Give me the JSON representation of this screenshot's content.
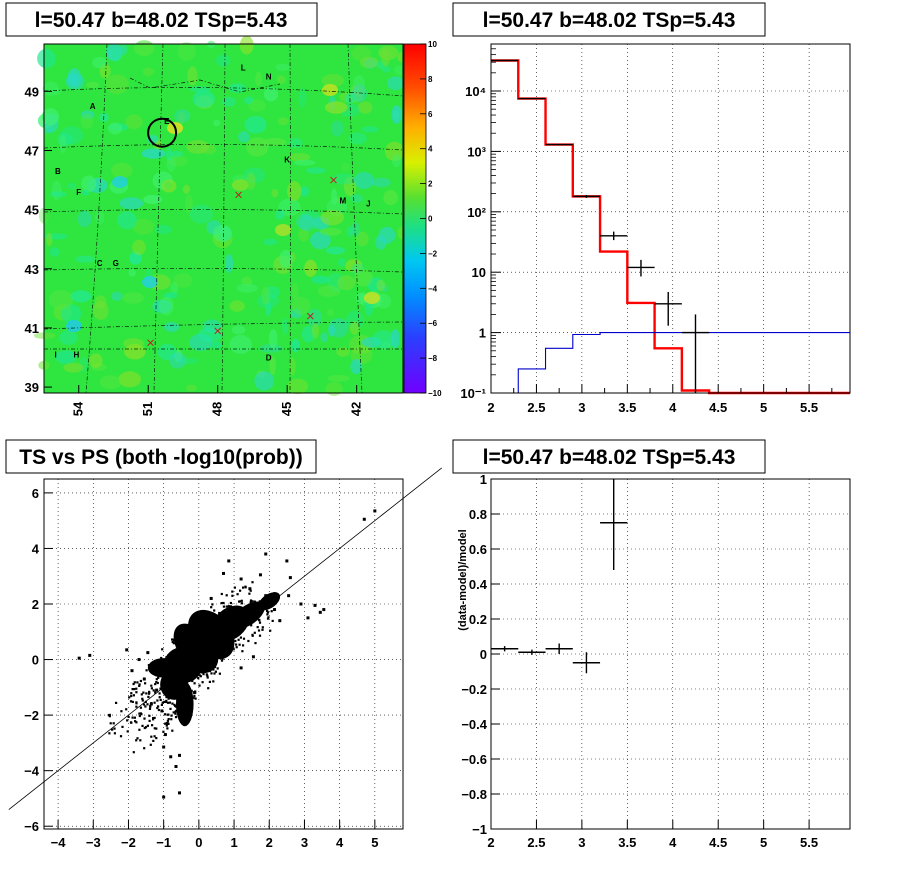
{
  "chart_data": [
    {
      "type": "heatmap",
      "title": "l=50.47 b=48.02 TSp=5.43",
      "x_ticks": [
        "54",
        "51",
        "48",
        "45",
        "42"
      ],
      "y_ticks": [
        "39",
        "41",
        "43",
        "45",
        "47",
        "49"
      ],
      "xlim": [
        55.5,
        40
      ],
      "ylim": [
        38.8,
        50.6
      ],
      "colorbar_ticks": [
        "10",
        "8",
        "6",
        "4",
        "2",
        "0",
        "−2",
        "−4",
        "−6",
        "−8",
        "−10"
      ],
      "colorbar_range": [
        -10,
        10
      ],
      "colors": {
        "background": "#2fe640",
        "high": "#ff2a00",
        "low": "#6a00ff"
      },
      "source_labels": [
        {
          "text": "A",
          "x": 53.4,
          "y": 48.4
        },
        {
          "text": "B",
          "x": 54.9,
          "y": 46.2
        },
        {
          "text": "F",
          "x": 54.0,
          "y": 45.5
        },
        {
          "text": "E",
          "x": 50.2,
          "y": 47.9
        },
        {
          "text": "L",
          "x": 46.9,
          "y": 49.7
        },
        {
          "text": "N",
          "x": 45.8,
          "y": 49.4
        },
        {
          "text": "K",
          "x": 45.0,
          "y": 46.6
        },
        {
          "text": "M",
          "x": 42.6,
          "y": 45.2
        },
        {
          "text": "J",
          "x": 41.5,
          "y": 45.1
        },
        {
          "text": "C",
          "x": 53.1,
          "y": 43.1
        },
        {
          "text": "G",
          "x": 52.4,
          "y": 43.1
        },
        {
          "text": "I",
          "x": 55.0,
          "y": 40.0
        },
        {
          "text": "H",
          "x": 54.1,
          "y": 40.0
        },
        {
          "text": "D",
          "x": 45.8,
          "y": 39.9
        }
      ],
      "crosses": [
        [
          47.1,
          45.5
        ],
        [
          43.0,
          46.0
        ],
        [
          44.0,
          41.4
        ],
        [
          48.0,
          40.9
        ],
        [
          50.9,
          40.5
        ]
      ],
      "circle": {
        "x": 50.4,
        "y": 47.6
      }
    },
    {
      "type": "line",
      "title": "l=50.47 b=48.02 TSp=5.43",
      "x_ticks": [
        "2",
        "2.5",
        "3",
        "3.5",
        "4",
        "4.5",
        "5",
        "5.5"
      ],
      "y_ticks": [
        "10⁻¹",
        "1",
        "10",
        "10²",
        "10³",
        "10⁴"
      ],
      "xlim": [
        2,
        5.95
      ],
      "ylim": [
        0.1,
        60000
      ],
      "log_y": true,
      "grid": true,
      "series": [
        {
          "color": "#ff0000",
          "edges": [
            2,
            2.3,
            2.6,
            2.9,
            3.2,
            3.5,
            3.8,
            4.1,
            4.4,
            5.95
          ],
          "values": [
            32000,
            7500,
            1300,
            180,
            22,
            3.1,
            0.55,
            0.11,
            0.1
          ]
        },
        {
          "color": "#0000cc",
          "edges": [
            2,
            2.3,
            2.6,
            2.9,
            3.2,
            5.95
          ],
          "values": [
            0.1,
            0.25,
            0.55,
            0.93,
            1.0
          ]
        },
        {
          "color": "#000000",
          "points": [
            {
              "x": 2.15,
              "y": 32000,
              "xerr": 0.15,
              "ylo": 31500,
              "yhi": 32500
            },
            {
              "x": 2.45,
              "y": 7500,
              "xerr": 0.15,
              "ylo": 7400,
              "yhi": 7600
            },
            {
              "x": 2.75,
              "y": 1300,
              "xerr": 0.15,
              "ylo": 1270,
              "yhi": 1330
            },
            {
              "x": 3.05,
              "y": 180,
              "xerr": 0.15,
              "ylo": 170,
              "yhi": 190
            },
            {
              "x": 3.35,
              "y": 40,
              "xerr": 0.15,
              "ylo": 34,
              "yhi": 47
            },
            {
              "x": 3.65,
              "y": 12,
              "xerr": 0.15,
              "ylo": 8.5,
              "yhi": 16
            },
            {
              "x": 3.95,
              "y": 3.0,
              "xerr": 0.15,
              "ylo": 1.3,
              "yhi": 4.7
            },
            {
              "x": 4.25,
              "y": 1.0,
              "xerr": 0.15,
              "ylo": 0.1,
              "yhi": 2.0
            }
          ]
        }
      ]
    },
    {
      "type": "scatter",
      "title": "TS vs PS (both -log10(prob))",
      "x_ticks": [
        "−4",
        "−3",
        "−2",
        "−1",
        "0",
        "1",
        "2",
        "3",
        "4",
        "5"
      ],
      "y_ticks": [
        "−6",
        "−4",
        "−2",
        "0",
        "2",
        "4",
        "6"
      ],
      "xlim": [
        -4.4,
        5.8
      ],
      "ylim": [
        -6.1,
        6.5
      ],
      "grid": true,
      "diagonal": {
        "from": [
          -5.4,
          -5.4
        ],
        "to": [
          6.9,
          6.9
        ]
      },
      "points": [
        [
          -3.4,
          0.05
        ],
        [
          -3.1,
          0.15
        ],
        [
          -2.05,
          0.35
        ],
        [
          -1.7,
          0.0
        ],
        [
          -1.45,
          0.25
        ],
        [
          -1.3,
          -0.35
        ],
        [
          -1.9,
          -0.4
        ],
        [
          -1.55,
          -0.7
        ],
        [
          -1.2,
          -1.1
        ],
        [
          -1.35,
          -1.6
        ],
        [
          -1.05,
          -1.85
        ],
        [
          -0.9,
          -2.3
        ],
        [
          -0.95,
          -2.7
        ],
        [
          -1.0,
          -3.15
        ],
        [
          -0.8,
          -3.5
        ],
        [
          -0.65,
          -3.85
        ],
        [
          -0.55,
          -3.45
        ],
        [
          -1.0,
          -4.95
        ],
        [
          -0.55,
          -4.8
        ],
        [
          0.3,
          -0.35
        ],
        [
          0.55,
          0.6
        ],
        [
          0.9,
          1.9
        ],
        [
          1.45,
          2.55
        ],
        [
          1.75,
          3.05
        ],
        [
          1.9,
          3.8
        ],
        [
          2.5,
          3.55
        ],
        [
          2.6,
          2.95
        ],
        [
          2.9,
          2.0
        ],
        [
          3.3,
          1.95
        ],
        [
          3.45,
          1.7
        ],
        [
          3.1,
          1.5
        ],
        [
          3.55,
          1.8
        ],
        [
          4.7,
          5.05
        ],
        [
          5.0,
          5.35
        ],
        [
          2.55,
          2.3
        ],
        [
          2.15,
          1.8
        ],
        [
          2.3,
          1.4
        ],
        [
          1.9,
          2.3
        ],
        [
          1.2,
          2.9
        ],
        [
          0.7,
          3.1
        ],
        [
          0.85,
          3.55
        ],
        [
          0.35,
          2.2
        ],
        [
          0.15,
          1.6
        ],
        [
          -0.3,
          1.1
        ],
        [
          -0.7,
          0.7
        ],
        [
          -0.4,
          -2.0
        ],
        [
          1.55,
          0.1
        ],
        [
          1.2,
          -0.3
        ]
      ]
    },
    {
      "type": "scatter",
      "title": "l=50.47 b=48.02 TSp=5.43",
      "ylabel": "(data-model)/model",
      "x_ticks": [
        "2",
        "2.5",
        "3",
        "3.5",
        "4",
        "4.5",
        "5",
        "5.5"
      ],
      "y_ticks": [
        "−1",
        "−0.8",
        "−0.6",
        "−0.4",
        "−0.2",
        "0",
        "0.2",
        "0.4",
        "0.6",
        "0.8",
        "1"
      ],
      "xlim": [
        2,
        5.95
      ],
      "ylim": [
        -1,
        1
      ],
      "grid": true,
      "points": [
        {
          "x": 2.15,
          "y": 0.03,
          "xerr": 0.15,
          "ylo": 0.015,
          "yhi": 0.045
        },
        {
          "x": 2.45,
          "y": 0.01,
          "xerr": 0.15,
          "ylo": -0.005,
          "yhi": 0.025
        },
        {
          "x": 2.75,
          "y": 0.03,
          "xerr": 0.15,
          "ylo": 0.0,
          "yhi": 0.06
        },
        {
          "x": 3.05,
          "y": -0.05,
          "xerr": 0.15,
          "ylo": -0.11,
          "yhi": 0.01
        },
        {
          "x": 3.35,
          "y": 0.75,
          "xerr": 0.15,
          "ylo": 0.48,
          "yhi": 1.0
        }
      ]
    }
  ]
}
